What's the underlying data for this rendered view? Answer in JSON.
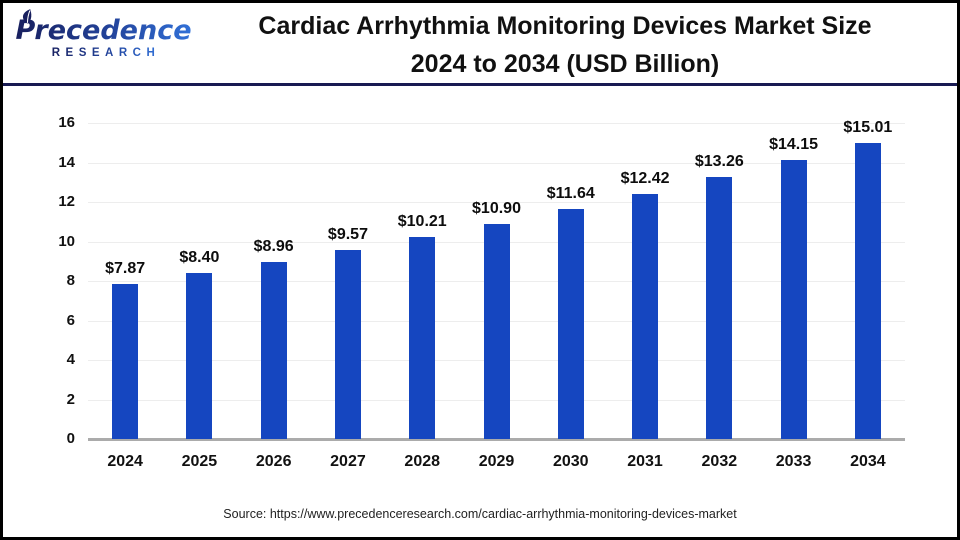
{
  "header": {
    "logo_name": "Precedence",
    "logo_subname": "RESEARCH",
    "title_line1": "Cardiac Arrhythmia Monitoring Devices Market Size",
    "title_line2": "2024 to 2034 (USD Billion)"
  },
  "chart_data": {
    "type": "bar",
    "title": "Cardiac Arrhythmia Monitoring Devices Market Size 2024 to 2034 (USD Billion)",
    "categories": [
      "2024",
      "2025",
      "2026",
      "2027",
      "2028",
      "2029",
      "2030",
      "2031",
      "2032",
      "2033",
      "2034"
    ],
    "values": [
      7.87,
      8.4,
      8.96,
      9.57,
      10.21,
      10.9,
      11.64,
      12.42,
      13.26,
      14.15,
      15.01
    ],
    "value_labels": [
      "$7.87",
      "$8.40",
      "$8.96",
      "$9.57",
      "$10.21",
      "$10.90",
      "$11.64",
      "$12.42",
      "$13.26",
      "$14.15",
      "$15.01"
    ],
    "xlabel": "",
    "ylabel": "",
    "ylim": [
      0,
      16
    ],
    "ytick_step": 2,
    "grid": "horizontal",
    "legend": "none",
    "bar_color": "#1546c0"
  },
  "colors": {
    "bar": "#1546c0",
    "gridline": "#ededed",
    "baseline": "#ababab",
    "header_rule": "#181a52",
    "logo_dark": "#181f5e",
    "logo_light": "#3171d8",
    "outer_border": "#000000"
  },
  "footer": {
    "source": "Source: https://www.precedenceresearch.com/cardiac-arrhythmia-monitoring-devices-market"
  }
}
